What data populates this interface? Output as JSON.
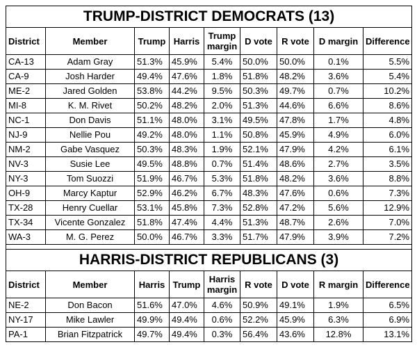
{
  "democrats": {
    "title": "TRUMP-DISTRICT DEMOCRATS (13)",
    "headers": [
      "District",
      "Member",
      "Trump",
      "Harris",
      "Trump margin",
      "D vote",
      "R vote",
      "D margin",
      "Difference"
    ],
    "header_line1": [
      "District",
      "Member",
      "Trump",
      "Harris",
      "Trump",
      "D vote",
      "R vote",
      "D margin",
      "Difference"
    ],
    "header_line2": [
      "",
      "",
      "",
      "",
      "margin",
      "",
      "",
      "",
      ""
    ],
    "rows": [
      [
        "CA-13",
        "Adam Gray",
        "51.3%",
        "45.9%",
        "5.4%",
        "50.0%",
        "50.0%",
        "0.1%",
        "5.5%"
      ],
      [
        "CA-9",
        "Josh Harder",
        "49.4%",
        "47.6%",
        "1.8%",
        "51.8%",
        "48.2%",
        "3.6%",
        "5.4%"
      ],
      [
        "ME-2",
        "Jared Golden",
        "53.8%",
        "44.2%",
        "9.5%",
        "50.3%",
        "49.7%",
        "0.7%",
        "10.2%"
      ],
      [
        "MI-8",
        "K. M. Rivet",
        "50.2%",
        "48.2%",
        "2.0%",
        "51.3%",
        "44.6%",
        "6.6%",
        "8.6%"
      ],
      [
        "NC-1",
        "Don Davis",
        "51.1%",
        "48.0%",
        "3.1%",
        "49.5%",
        "47.8%",
        "1.7%",
        "4.8%"
      ],
      [
        "NJ-9",
        "Nellie Pou",
        "49.2%",
        "48.0%",
        "1.1%",
        "50.8%",
        "45.9%",
        "4.9%",
        "6.0%"
      ],
      [
        "NM-2",
        "Gabe Vasquez",
        "50.3%",
        "48.3%",
        "1.9%",
        "52.1%",
        "47.9%",
        "4.2%",
        "6.1%"
      ],
      [
        "NV-3",
        "Susie Lee",
        "49.5%",
        "48.8%",
        "0.7%",
        "51.4%",
        "48.6%",
        "2.7%",
        "3.5%"
      ],
      [
        "NY-3",
        "Tom Suozzi",
        "51.9%",
        "46.7%",
        "5.3%",
        "51.8%",
        "48.2%",
        "3.6%",
        "8.8%"
      ],
      [
        "OH-9",
        "Marcy Kaptur",
        "52.9%",
        "46.2%",
        "6.7%",
        "48.3%",
        "47.6%",
        "0.6%",
        "7.3%"
      ],
      [
        "TX-28",
        "Henry Cuellar",
        "53.1%",
        "45.8%",
        "7.3%",
        "52.8%",
        "47.2%",
        "5.6%",
        "12.9%"
      ],
      [
        "TX-34",
        "Vicente Gonzalez",
        "51.8%",
        "47.4%",
        "4.4%",
        "51.3%",
        "48.7%",
        "2.6%",
        "7.0%"
      ],
      [
        "WA-3",
        "M. G. Perez",
        "50.0%",
        "46.7%",
        "3.3%",
        "51.7%",
        "47.9%",
        "3.9%",
        "7.2%"
      ]
    ]
  },
  "republicans": {
    "title": "HARRIS-DISTRICT REPUBLICANS (3)",
    "header_line1": [
      "District",
      "Member",
      "Harris",
      "Trump",
      "Harris",
      "R vote",
      "D vote",
      "R margin",
      "Difference"
    ],
    "header_line2": [
      "",
      "",
      "",
      "",
      "margin",
      "",
      "",
      "",
      ""
    ],
    "rows": [
      [
        "NE-2",
        "Don Bacon",
        "51.6%",
        "47.0%",
        "4.6%",
        "50.9%",
        "49.1%",
        "1.9%",
        "6.5%"
      ],
      [
        "NY-17",
        "Mike Lawler",
        "49.9%",
        "49.4%",
        "0.6%",
        "52.2%",
        "45.9%",
        "6.3%",
        "6.9%"
      ],
      [
        "PA-1",
        "Brian Fitzpatrick",
        "49.7%",
        "49.4%",
        "0.3%",
        "56.4%",
        "43.6%",
        "12.8%",
        "13.1%"
      ]
    ]
  }
}
